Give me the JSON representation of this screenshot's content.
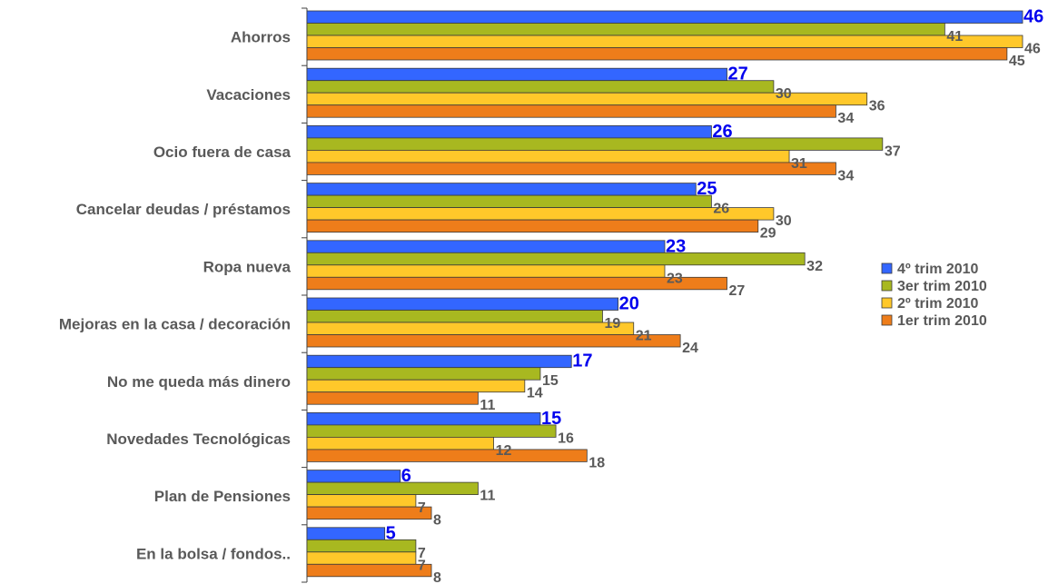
{
  "chart_data": {
    "type": "bar",
    "orientation": "horizontal",
    "categories": [
      "Ahorros",
      "Vacaciones",
      "Ocio fuera de casa",
      "Cancelar deudas / préstamos",
      "Ropa nueva",
      "Mejoras en la casa / decoración",
      "No me queda más dinero",
      "Novedades Tecnológicas",
      "Plan de Pensiones",
      "En la bolsa / fondos.."
    ],
    "series": [
      {
        "name": "4º trim 2010",
        "color": "#3366ff",
        "values": [
          46,
          27,
          26,
          25,
          23,
          20,
          17,
          15,
          6,
          5
        ]
      },
      {
        "name": "3er trim 2010",
        "color": "#a8b820",
        "values": [
          41,
          30,
          37,
          26,
          32,
          19,
          15,
          16,
          11,
          7
        ]
      },
      {
        "name": "2º trim 2010",
        "color": "#ffc82a",
        "values": [
          46,
          36,
          31,
          30,
          23,
          21,
          14,
          12,
          7,
          7
        ]
      },
      {
        "name": "1er trim 2010",
        "color": "#ee7d1a",
        "values": [
          45,
          34,
          34,
          29,
          27,
          24,
          11,
          18,
          8,
          8
        ]
      }
    ],
    "xlim": [
      0,
      46
    ],
    "grid": false,
    "legend": "right",
    "value_label_colors": {
      "first_series": "#0000ee",
      "other_series": "#595959"
    }
  }
}
